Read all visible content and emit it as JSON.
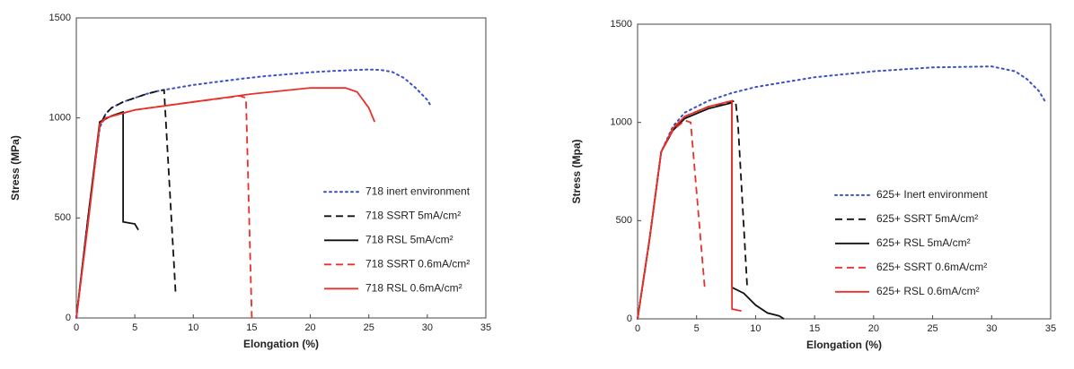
{
  "chart_data": [
    {
      "type": "line",
      "xlabel": "Elongation (%)",
      "ylabel": "Stress (MPa)",
      "xlim": [
        0,
        35
      ],
      "ylim": [
        0,
        1500
      ],
      "xticks": [
        0,
        5,
        10,
        15,
        20,
        25,
        30,
        35
      ],
      "yticks": [
        0,
        500,
        1000,
        1500
      ],
      "legend": "center right",
      "series": [
        {
          "name": "718 inert environment",
          "color": "#3a4fc8",
          "style": "dotted",
          "x": [
            0,
            1,
            2,
            2.5,
            3,
            4,
            5,
            6,
            7,
            8,
            10,
            12,
            14,
            16,
            18,
            20,
            22,
            24,
            25,
            26,
            27,
            28,
            29,
            30,
            30.3
          ],
          "values": [
            0,
            500,
            950,
            1020,
            1050,
            1080,
            1100,
            1120,
            1135,
            1145,
            1165,
            1180,
            1195,
            1208,
            1218,
            1228,
            1235,
            1240,
            1242,
            1240,
            1230,
            1200,
            1150,
            1090,
            1060
          ]
        },
        {
          "name": "718 SSRT 5mA/cm²",
          "color": "#111111",
          "style": "dashed",
          "x": [
            0,
            1,
            2,
            2.5,
            3,
            4,
            5,
            6,
            7,
            7.5,
            8.5
          ],
          "values": [
            0,
            500,
            960,
            1020,
            1050,
            1080,
            1100,
            1120,
            1135,
            1140,
            110
          ]
        },
        {
          "name": "718 RSL 5mA/cm²",
          "color": "#111111",
          "style": "solid",
          "x": [
            0,
            1,
            2,
            3,
            4,
            4,
            5,
            5.3
          ],
          "values": [
            0,
            500,
            980,
            1010,
            1030,
            480,
            470,
            440
          ]
        },
        {
          "name": "718 SSRT 0.6mA/cm²",
          "color": "#e8312a",
          "style": "dashed",
          "x": [
            0,
            1,
            2,
            2.5,
            5,
            10,
            14,
            14.5,
            15
          ],
          "values": [
            0,
            480,
            960,
            1000,
            1040,
            1080,
            1110,
            1100,
            0
          ]
        },
        {
          "name": "718 RSL 0.6mA/cm²",
          "color": "#e8312a",
          "style": "solid",
          "x": [
            0,
            1,
            2,
            2.5,
            5,
            10,
            15,
            20,
            23,
            24,
            25,
            25.5
          ],
          "values": [
            0,
            470,
            970,
            1000,
            1040,
            1080,
            1120,
            1150,
            1150,
            1130,
            1050,
            980
          ]
        }
      ]
    },
    {
      "type": "line",
      "xlabel": "Elongation (%)",
      "ylabel": "Stress (Mpa)",
      "xlim": [
        0,
        35
      ],
      "ylim": [
        0,
        1500
      ],
      "xticks": [
        0,
        5,
        10,
        15,
        20,
        25,
        30,
        35
      ],
      "yticks": [
        0,
        500,
        1000,
        1500
      ],
      "legend": "center right",
      "series": [
        {
          "name": "625+ Inert environment",
          "color": "#3a4fc8",
          "style": "dotted",
          "x": [
            0,
            1,
            2,
            3,
            4,
            6,
            8,
            10,
            15,
            20,
            25,
            30,
            32,
            33,
            34,
            34.5
          ],
          "values": [
            0,
            400,
            850,
            980,
            1050,
            1110,
            1150,
            1180,
            1230,
            1260,
            1280,
            1285,
            1260,
            1220,
            1160,
            1110
          ]
        },
        {
          "name": "625+ SSRT 5mA/cm²",
          "color": "#111111",
          "style": "dashed",
          "x": [
            0,
            1,
            2,
            3,
            4,
            6,
            8.3,
            8.5,
            9.3
          ],
          "values": [
            0,
            400,
            850,
            970,
            1030,
            1080,
            1110,
            1000,
            150
          ]
        },
        {
          "name": "625+ RSL 5mA/cm²",
          "color": "#111111",
          "style": "solid",
          "x": [
            0,
            1,
            2,
            3,
            4,
            6,
            8,
            8,
            9,
            10,
            11,
            12,
            12.4
          ],
          "values": [
            0,
            400,
            850,
            960,
            1020,
            1070,
            1100,
            160,
            130,
            70,
            30,
            15,
            0
          ]
        },
        {
          "name": "625+ SSRT 0.6mA/cm²",
          "color": "#e8312a",
          "style": "dashed",
          "x": [
            0,
            1,
            2,
            3,
            4,
            4.5,
            5.7
          ],
          "values": [
            0,
            400,
            850,
            960,
            1010,
            1000,
            150
          ]
        },
        {
          "name": "625+ RSL 0.6mA/cm²",
          "color": "#e8312a",
          "style": "solid",
          "x": [
            0,
            1,
            2,
            3,
            4,
            6,
            8,
            8,
            8.8
          ],
          "values": [
            0,
            400,
            850,
            970,
            1030,
            1080,
            1110,
            50,
            40
          ]
        }
      ]
    }
  ]
}
